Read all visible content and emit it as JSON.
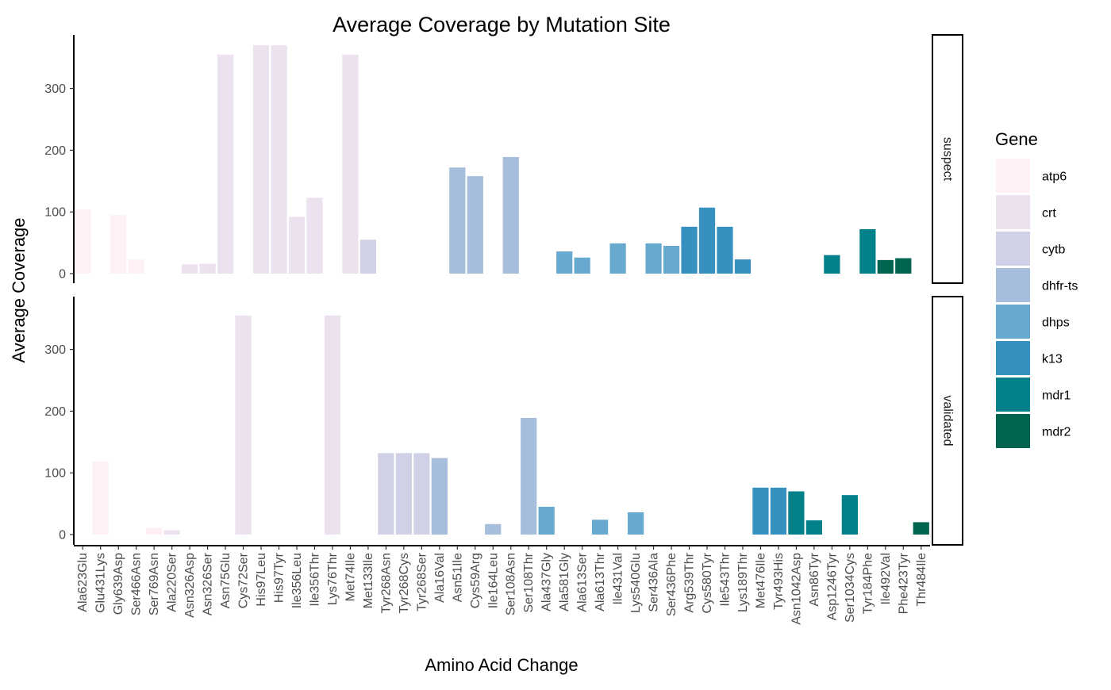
{
  "chart_data": {
    "type": "bar",
    "title": "Average Coverage by Mutation Site",
    "xlabel": "Amino Acid Change",
    "ylabel": "Average Coverage",
    "ylim": [
      0,
      370
    ],
    "yticks": [
      0,
      100,
      200,
      300
    ],
    "grid": false,
    "legend": {
      "title": "Gene",
      "position": "right"
    },
    "categories": [
      "Ala623Glu",
      "Glu431Lys",
      "Gly639Asp",
      "Ser466Asn",
      "Ser769Asn",
      "Ala220Ser",
      "Asn326Asp",
      "Asn326Ser",
      "Asn75Glu",
      "Cys72Ser",
      "His97Leu",
      "His97Tyr",
      "Ile356Leu",
      "Ile356Thr",
      "Lys76Thr",
      "Met74Ile",
      "Met133Ile",
      "Tyr268Asn",
      "Tyr268Cys",
      "Tyr268Ser",
      "Ala16Val",
      "Asn51Ile",
      "Cys59Arg",
      "Ile164Leu",
      "Ser108Asn",
      "Ser108Thr",
      "Ala437Gly",
      "Ala581Gly",
      "Ala613Ser",
      "Ala613Thr",
      "Ile431Val",
      "Lys540Glu",
      "Ser436Ala",
      "Ser436Phe",
      "Arg539Thr",
      "Cys580Tyr",
      "Ile543Thr",
      "Lys189Thr",
      "Met476Ile",
      "Tyr493His",
      "Asn1042Asp",
      "Asn86Tyr",
      "Asp1246Tyr",
      "Ser1034Cys",
      "Tyr184Phe",
      "Ile492Val",
      "Phe423Tyr",
      "Thr484Ile"
    ],
    "genes": [
      {
        "name": "atp6",
        "color": "#FFF0F8"
      },
      {
        "name": "crt",
        "color": "#EBE1EF"
      },
      {
        "name": "cytb",
        "color": "#D0D1E6"
      },
      {
        "name": "dhfr-ts",
        "color": "#A6BDDB"
      },
      {
        "name": "dhps",
        "color": "#67A9CF"
      },
      {
        "name": "k13",
        "color": "#3690C0"
      },
      {
        "name": "mdr1",
        "color": "#02818A"
      },
      {
        "name": "mdr2",
        "color": "#016450"
      }
    ],
    "panels": [
      {
        "label": "suspect",
        "bars": [
          {
            "x": "Ala623Glu",
            "gene": "atp6",
            "value": 104
          },
          {
            "x": "Gly639Asp",
            "gene": "atp6",
            "value": 95
          },
          {
            "x": "Ser466Asn",
            "gene": "atp6",
            "value": 23
          },
          {
            "x": "Asn326Asp",
            "gene": "crt",
            "value": 15
          },
          {
            "x": "Asn326Ser",
            "gene": "crt",
            "value": 16
          },
          {
            "x": "Asn75Glu",
            "gene": "crt",
            "value": 355
          },
          {
            "x": "His97Leu",
            "gene": "crt",
            "value": 370
          },
          {
            "x": "His97Tyr",
            "gene": "crt",
            "value": 370
          },
          {
            "x": "Ile356Leu",
            "gene": "crt",
            "value": 92
          },
          {
            "x": "Ile356Thr",
            "gene": "crt",
            "value": 123
          },
          {
            "x": "Met74Ile",
            "gene": "crt",
            "value": 355
          },
          {
            "x": "Met133Ile",
            "gene": "cytb",
            "value": 55
          },
          {
            "x": "Asn51Ile",
            "gene": "dhfr-ts",
            "value": 172
          },
          {
            "x": "Cys59Arg",
            "gene": "dhfr-ts",
            "value": 158
          },
          {
            "x": "Ser108Asn",
            "gene": "dhfr-ts",
            "value": 189
          },
          {
            "x": "Ala581Gly",
            "gene": "dhps",
            "value": 36
          },
          {
            "x": "Ala613Ser",
            "gene": "dhps",
            "value": 26
          },
          {
            "x": "Ile431Val",
            "gene": "dhps",
            "value": 49
          },
          {
            "x": "Ser436Ala",
            "gene": "dhps",
            "value": 49
          },
          {
            "x": "Ser436Phe",
            "gene": "dhps",
            "value": 45
          },
          {
            "x": "Arg539Thr",
            "gene": "k13",
            "value": 76
          },
          {
            "x": "Cys580Tyr",
            "gene": "k13",
            "value": 107
          },
          {
            "x": "Ile543Thr",
            "gene": "k13",
            "value": 76
          },
          {
            "x": "Lys189Thr",
            "gene": "k13",
            "value": 23
          },
          {
            "x": "Asp1246Tyr",
            "gene": "mdr1",
            "value": 30
          },
          {
            "x": "Tyr184Phe",
            "gene": "mdr1",
            "value": 72
          },
          {
            "x": "Ile492Val",
            "gene": "mdr2",
            "value": 22
          },
          {
            "x": "Phe423Tyr",
            "gene": "mdr2",
            "value": 25
          }
        ]
      },
      {
        "label": "validated",
        "bars": [
          {
            "x": "Glu431Lys",
            "gene": "atp6",
            "value": 118
          },
          {
            "x": "Ser769Asn",
            "gene": "atp6",
            "value": 11
          },
          {
            "x": "Ala220Ser",
            "gene": "crt",
            "value": 7
          },
          {
            "x": "Cys72Ser",
            "gene": "crt",
            "value": 355
          },
          {
            "x": "Lys76Thr",
            "gene": "crt",
            "value": 355
          },
          {
            "x": "Tyr268Asn",
            "gene": "cytb",
            "value": 132
          },
          {
            "x": "Tyr268Cys",
            "gene": "cytb",
            "value": 132
          },
          {
            "x": "Tyr268Ser",
            "gene": "cytb",
            "value": 132
          },
          {
            "x": "Ala16Val",
            "gene": "dhfr-ts",
            "value": 124
          },
          {
            "x": "Ile164Leu",
            "gene": "dhfr-ts",
            "value": 17
          },
          {
            "x": "Ser108Thr",
            "gene": "dhfr-ts",
            "value": 189
          },
          {
            "x": "Ala437Gly",
            "gene": "dhps",
            "value": 45
          },
          {
            "x": "Ala613Thr",
            "gene": "dhps",
            "value": 24
          },
          {
            "x": "Lys540Glu",
            "gene": "dhps",
            "value": 36
          },
          {
            "x": "Met476Ile",
            "gene": "k13",
            "value": 76
          },
          {
            "x": "Tyr493His",
            "gene": "k13",
            "value": 76
          },
          {
            "x": "Asn1042Asp",
            "gene": "mdr1",
            "value": 70
          },
          {
            "x": "Asn86Tyr",
            "gene": "mdr1",
            "value": 23
          },
          {
            "x": "Ser1034Cys",
            "gene": "mdr1",
            "value": 64
          },
          {
            "x": "Thr484Ile",
            "gene": "mdr2",
            "value": 20
          }
        ]
      }
    ]
  }
}
